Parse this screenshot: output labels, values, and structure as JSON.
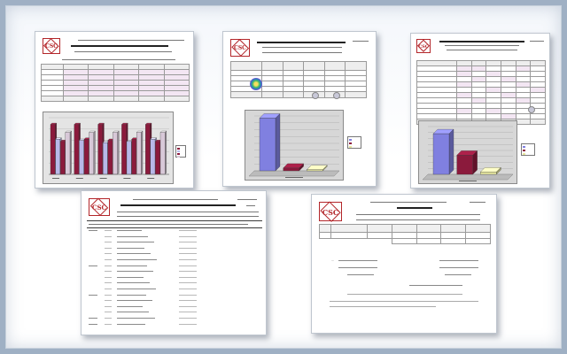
{
  "logo_text": "CSC",
  "colors": {
    "background": "#9fb0c4",
    "logo_red": "#b3262a",
    "bar_maroon": "#8b1a3c",
    "bar_lavender": "#b8b8e8",
    "bar_blue": "#8080e0",
    "bar_pink": "#d8c8d8",
    "chart_panel": "#d7d7d7"
  },
  "documents": [
    {
      "id": "doc1",
      "type": "report-with-bar-chart"
    },
    {
      "id": "doc2",
      "type": "report-with-3d-bar-chart"
    },
    {
      "id": "doc3",
      "type": "report-with-3d-bar-chart"
    },
    {
      "id": "doc4",
      "type": "attendance-list"
    },
    {
      "id": "doc5",
      "type": "summary-form"
    }
  ],
  "chart_doc1": {
    "type": "bar",
    "groups": 5,
    "series_values": [
      [
        0.88,
        0.62,
        0.58,
        0.74
      ],
      [
        0.88,
        0.6,
        0.62,
        0.74
      ],
      [
        0.88,
        0.56,
        0.6,
        0.74
      ],
      [
        0.88,
        0.58,
        0.62,
        0.74
      ],
      [
        0.88,
        0.62,
        0.58,
        0.74
      ]
    ],
    "series_colors": [
      "#8b1a3c",
      "#b8b8e8",
      "#8b1a3c",
      "#d8c8d8"
    ]
  },
  "chart_doc2": {
    "type": "bar",
    "values": [
      0.96,
      0.05,
      0.02
    ],
    "colors": [
      "#8080e0",
      "#8b1a3c",
      "#e8e8a0"
    ]
  },
  "chart_doc3": {
    "type": "bar",
    "values": [
      0.85,
      0.4,
      0.05
    ],
    "colors": [
      "#8080e0",
      "#8b1a3c",
      "#e8e8a0"
    ]
  }
}
